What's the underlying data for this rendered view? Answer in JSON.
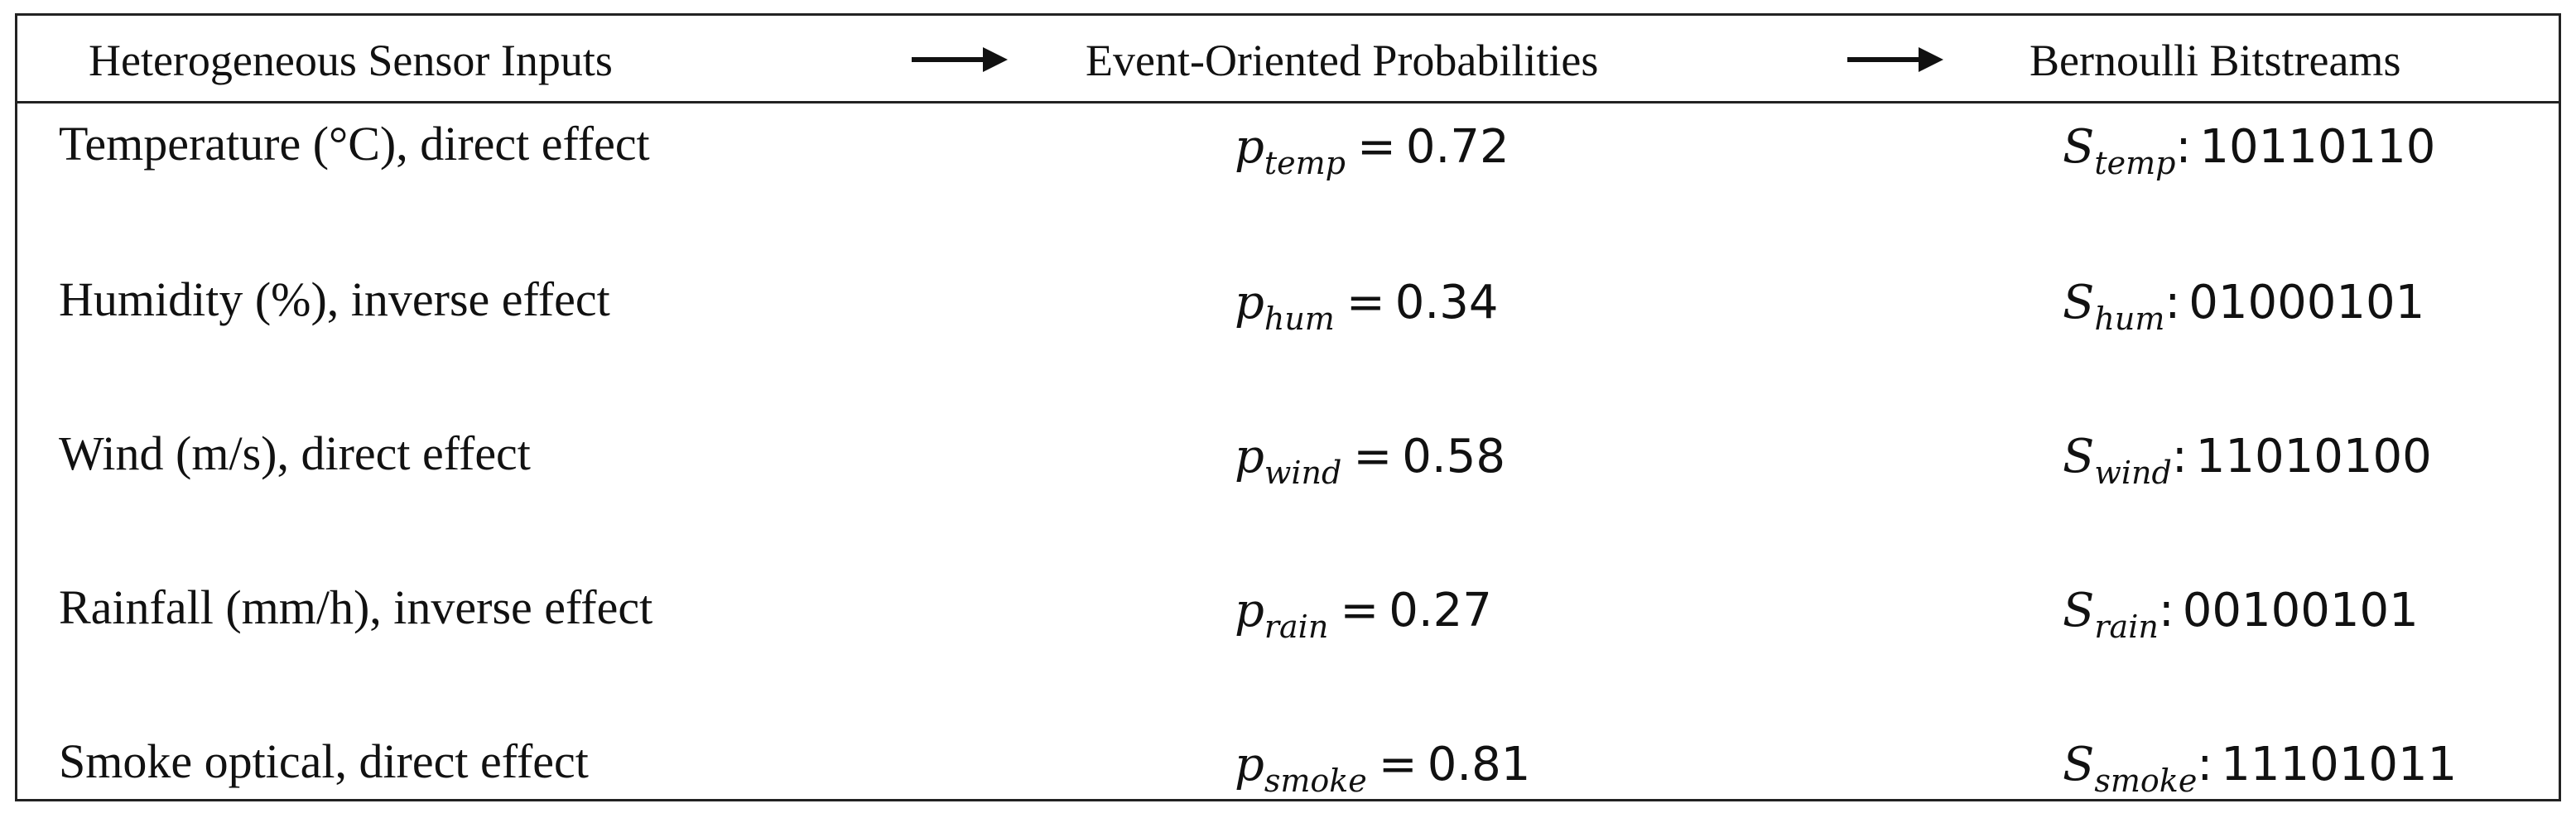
{
  "header": {
    "col_inputs": "Heterogeneous Sensor Inputs",
    "col_probabilities": "Event-Oriented Probabilities",
    "col_bitstreams": "Bernoulli Bitstreams",
    "arrow_icon": "right-arrow"
  },
  "rows": [
    {
      "input": "Temperature (°C), direct effect",
      "prob_symbol": "p",
      "prob_subscript": "temp",
      "equals": "=",
      "prob_value": "0.72",
      "stream_symbol": "S",
      "stream_subscript": "temp",
      "colon": ":",
      "bitstream": "10110110"
    },
    {
      "input": "Humidity (%), inverse effect",
      "prob_symbol": "p",
      "prob_subscript": "hum",
      "equals": "=",
      "prob_value": "0.34",
      "stream_symbol": "S",
      "stream_subscript": "hum",
      "colon": ":",
      "bitstream": "01000101"
    },
    {
      "input": "Wind (m/s), direct effect",
      "prob_symbol": "p",
      "prob_subscript": "wind",
      "equals": "=",
      "prob_value": "0.58",
      "stream_symbol": "S",
      "stream_subscript": "wind",
      "colon": ":",
      "bitstream": "11010100"
    },
    {
      "input": "Rainfall (mm/h), inverse effect",
      "prob_symbol": "p",
      "prob_subscript": "rain",
      "equals": "=",
      "prob_value": "0.27",
      "stream_symbol": "S",
      "stream_subscript": "rain",
      "colon": ":",
      "bitstream": "00100101"
    },
    {
      "input": "Smoke optical, direct effect",
      "prob_symbol": "p",
      "prob_subscript": "smoke",
      "equals": "=",
      "prob_value": "0.81",
      "stream_symbol": "S",
      "stream_subscript": "smoke",
      "colon": ":",
      "bitstream": "11101011"
    }
  ]
}
